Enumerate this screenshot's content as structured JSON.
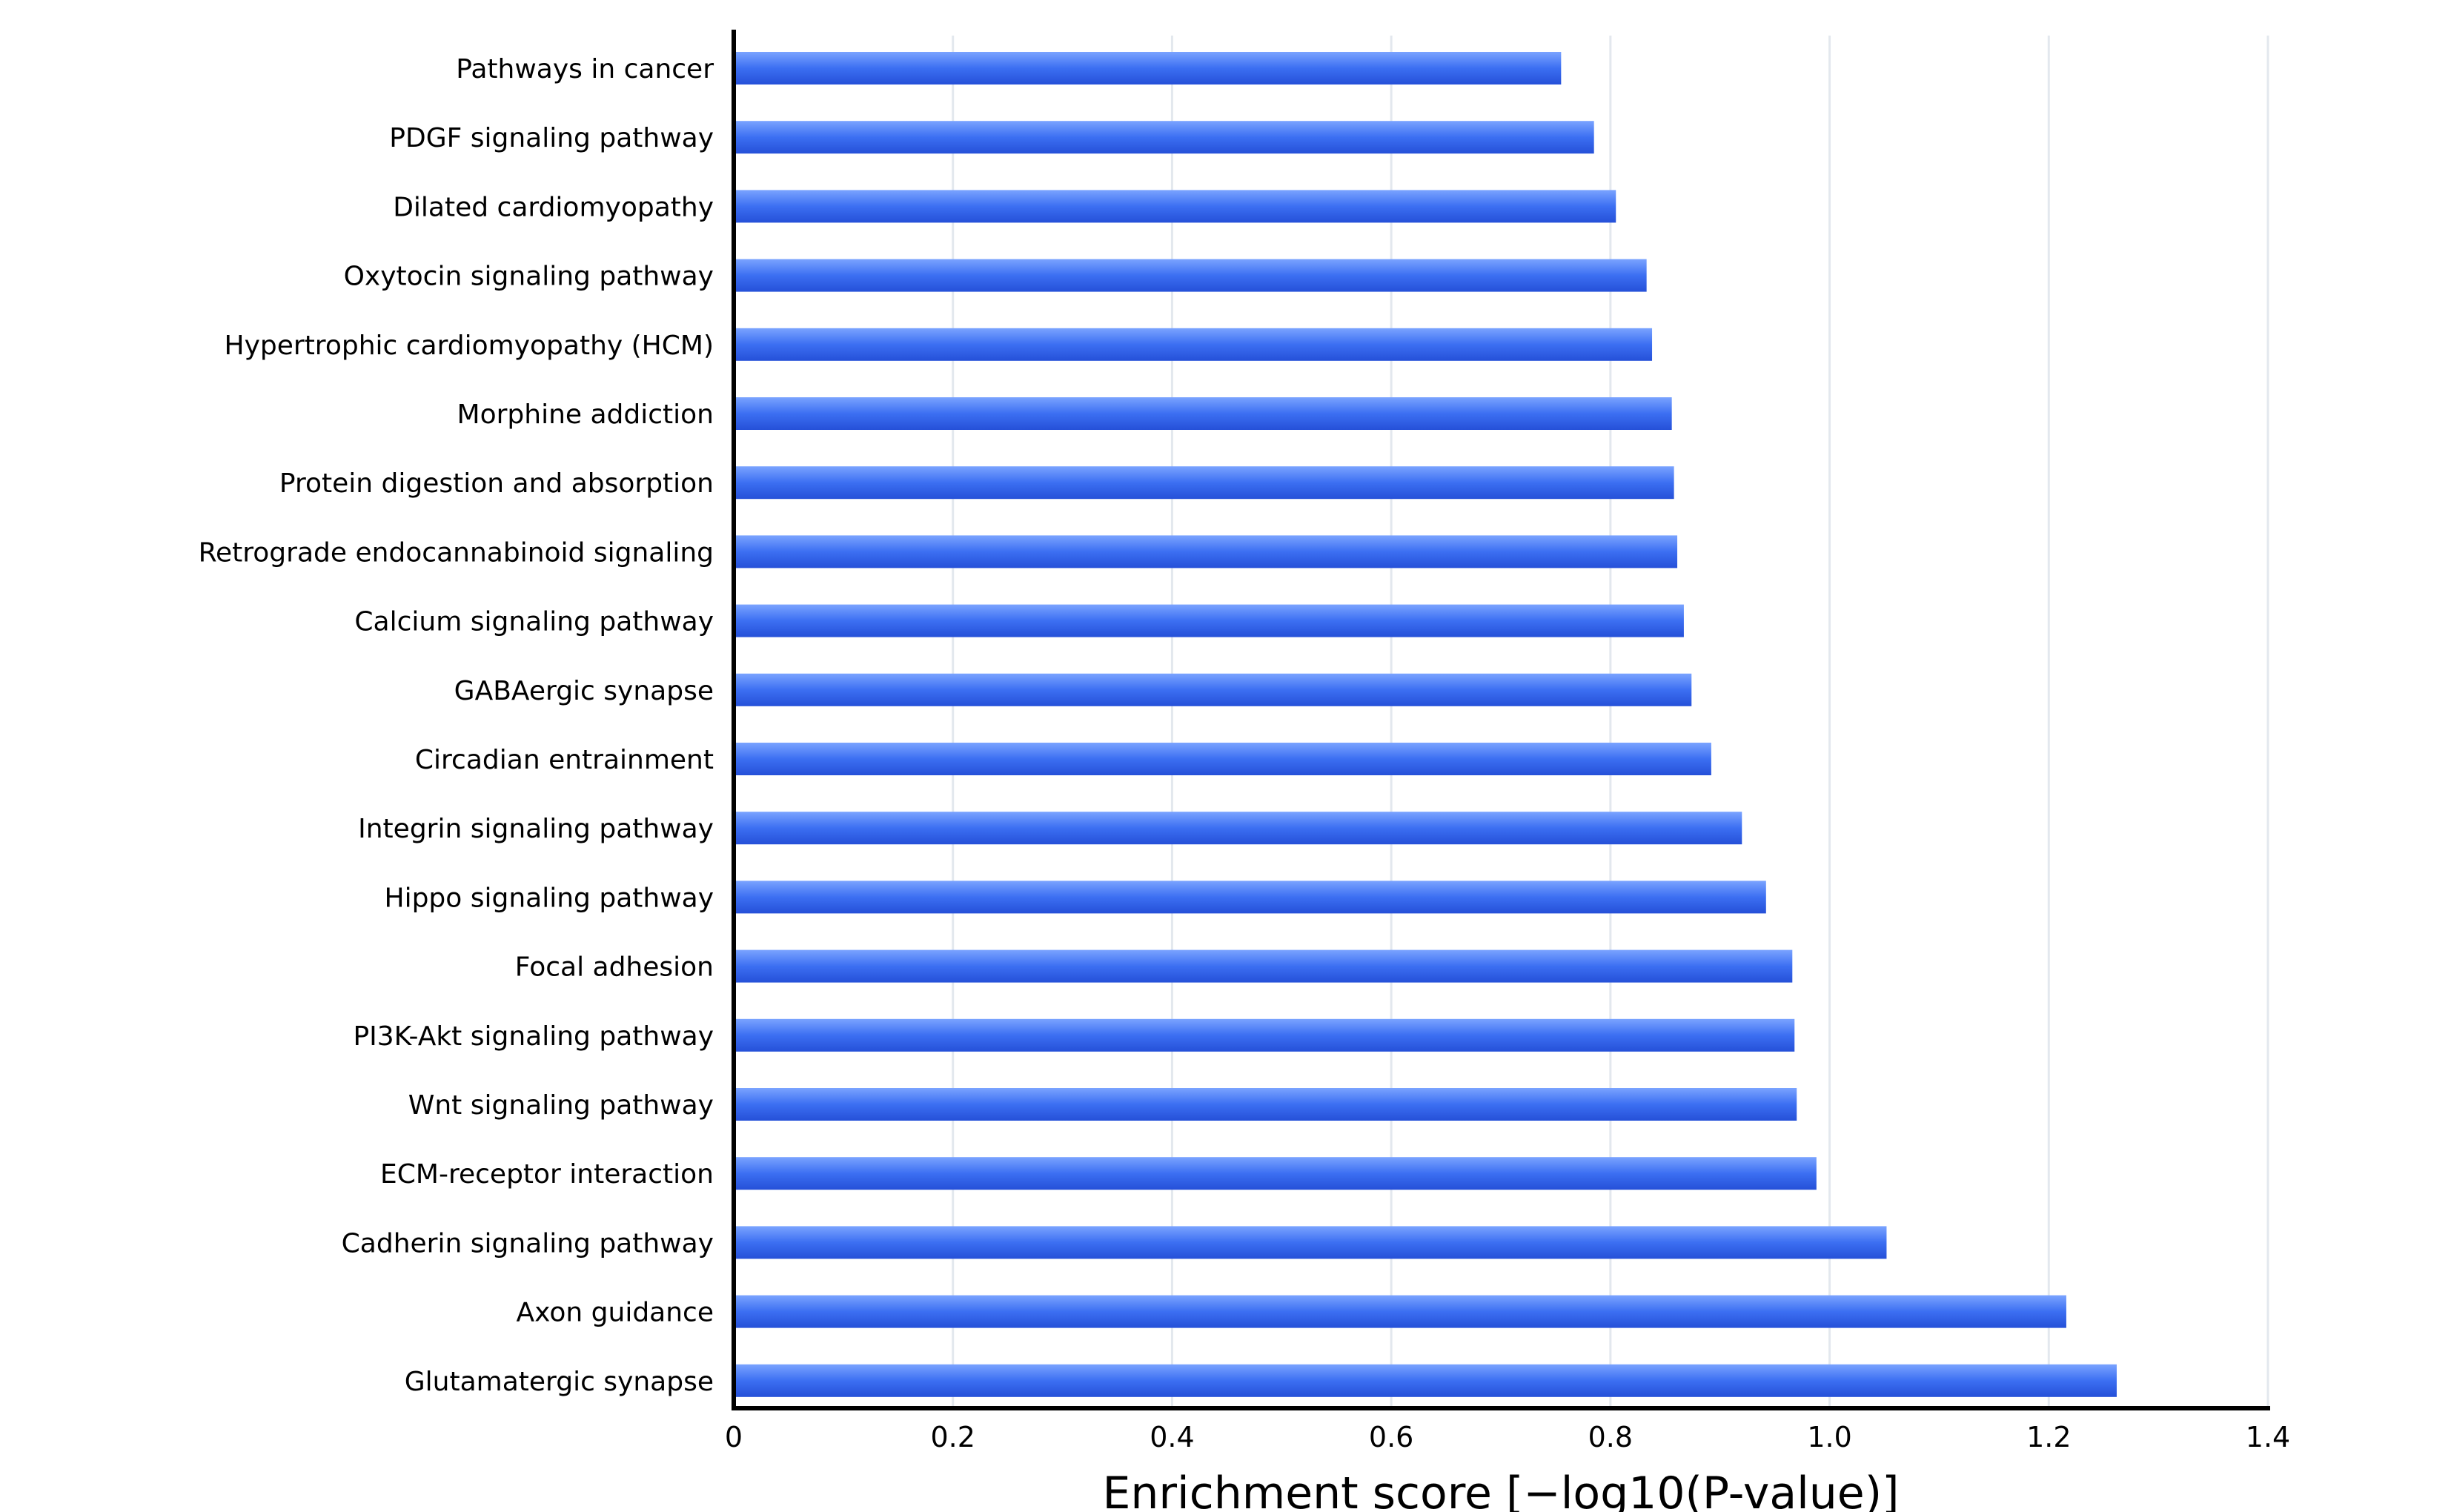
{
  "chart_data": {
    "type": "bar",
    "orientation": "horizontal",
    "title": "",
    "xlabel": "Enrichment score [−log10(P-value)]",
    "ylabel": "",
    "xlim": [
      0,
      1.4
    ],
    "x_ticks": [
      0,
      0.2,
      0.4,
      0.6,
      0.8,
      1.0,
      1.2,
      1.4
    ],
    "x_tick_labels": [
      "0",
      "0.2",
      "0.4",
      "0.6",
      "0.8",
      "1.0",
      "1.2",
      "1.4"
    ],
    "grid": true,
    "legend": "none",
    "bar_color": "#3c6ff2",
    "bar_color_light": "#7aa3ff",
    "bar_color_dark": "#2550d8",
    "categories": [
      "Pathways in cancer",
      "PDGF signaling pathway",
      "Dilated cardiomyopathy",
      "Oxytocin signaling pathway",
      "Hypertrophic cardiomyopathy (HCM)",
      "Morphine addiction",
      "Protein digestion and absorption",
      "Retrograde endocannabinoid signaling",
      "Calcium signaling pathway",
      "GABAergic synapse",
      "Circadian entrainment",
      "Integrin signaling pathway",
      "Hippo signaling pathway",
      "Focal adhesion",
      "PI3K-Akt signaling pathway",
      "Wnt signaling pathway",
      "ECM-receptor interaction",
      "Cadherin signaling pathway",
      "Axon guidance",
      "Glutamatergic synapse"
    ],
    "values": [
      0.755,
      0.785,
      0.805,
      0.833,
      0.838,
      0.856,
      0.858,
      0.861,
      0.867,
      0.874,
      0.892,
      0.92,
      0.942,
      0.966,
      0.968,
      0.97,
      0.988,
      1.052,
      1.216,
      1.262
    ]
  }
}
